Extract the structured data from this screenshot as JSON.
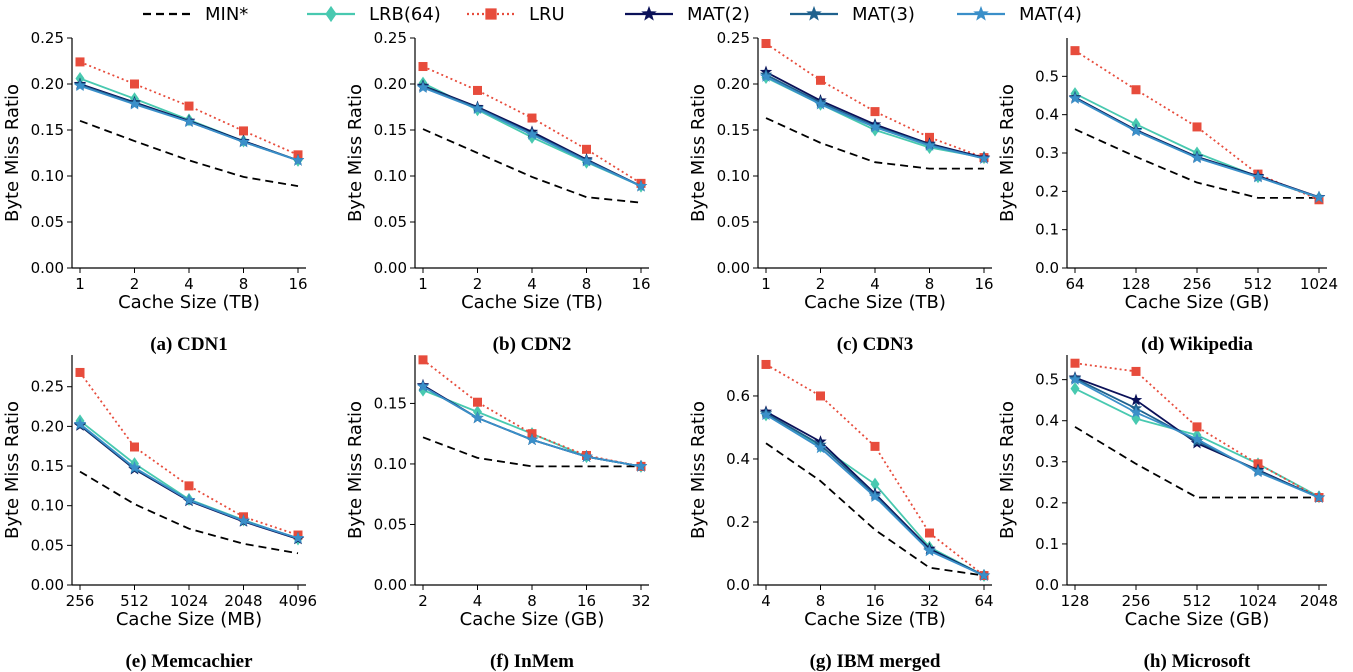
{
  "legend": [
    {
      "name": "MIN*",
      "color": "#000000",
      "dash": "8,5",
      "marker": "none"
    },
    {
      "name": "LRB(64)",
      "color": "#48c9b0",
      "dash": "",
      "marker": "diamond"
    },
    {
      "name": "LRU",
      "color": "#e74c3c",
      "dash": "2,3",
      "marker": "square"
    },
    {
      "name": "MAT(2)",
      "color": "#0b1158",
      "dash": "",
      "marker": "star"
    },
    {
      "name": "MAT(3)",
      "color": "#1f618d",
      "dash": "",
      "marker": "star"
    },
    {
      "name": "MAT(4)",
      "color": "#3a8fc9",
      "dash": "",
      "marker": "star"
    }
  ],
  "chart_data": [
    {
      "type": "line",
      "caption": "(a) CDN1",
      "x": [
        "1",
        "2",
        "4",
        "8",
        "16"
      ],
      "xlabel": "Cache Size (TB)",
      "ylabel": "Byte Miss Ratio",
      "ylim": [
        0,
        0.25
      ],
      "yticks": [
        "0.00",
        "0.05",
        "0.10",
        "0.15",
        "0.20",
        "0.25"
      ],
      "series": [
        {
          "name": "MIN*",
          "values": [
            0.16,
            0.138,
            0.117,
            0.099,
            0.089
          ]
        },
        {
          "name": "LRB(64)",
          "values": [
            0.206,
            0.184,
            0.161,
            0.138,
            0.117
          ]
        },
        {
          "name": "LRU",
          "values": [
            0.224,
            0.2,
            0.176,
            0.149,
            0.123
          ]
        },
        {
          "name": "MAT(2)",
          "values": [
            0.2,
            0.18,
            0.16,
            0.138,
            0.117
          ]
        },
        {
          "name": "MAT(3)",
          "values": [
            0.199,
            0.179,
            0.159,
            0.137,
            0.117
          ]
        },
        {
          "name": "MAT(4)",
          "values": [
            0.198,
            0.178,
            0.159,
            0.137,
            0.117
          ]
        }
      ]
    },
    {
      "type": "line",
      "caption": "(b) CDN2",
      "x": [
        "1",
        "2",
        "4",
        "8",
        "16"
      ],
      "xlabel": "Cache Size (TB)",
      "ylabel": "Byte Miss Ratio",
      "ylim": [
        0,
        0.25
      ],
      "yticks": [
        "0.00",
        "0.05",
        "0.10",
        "0.15",
        "0.20",
        "0.25"
      ],
      "series": [
        {
          "name": "MIN*",
          "values": [
            0.151,
            0.125,
            0.099,
            0.077,
            0.071
          ]
        },
        {
          "name": "LRB(64)",
          "values": [
            0.201,
            0.172,
            0.142,
            0.115,
            0.089
          ]
        },
        {
          "name": "LRU",
          "values": [
            0.219,
            0.193,
            0.163,
            0.129,
            0.092
          ]
        },
        {
          "name": "MAT(2)",
          "values": [
            0.198,
            0.175,
            0.148,
            0.118,
            0.089
          ]
        },
        {
          "name": "MAT(3)",
          "values": [
            0.197,
            0.174,
            0.146,
            0.117,
            0.089
          ]
        },
        {
          "name": "MAT(4)",
          "values": [
            0.196,
            0.173,
            0.145,
            0.116,
            0.089
          ]
        }
      ]
    },
    {
      "type": "line",
      "caption": "(c) CDN3",
      "x": [
        "1",
        "2",
        "4",
        "8",
        "16"
      ],
      "xlabel": "Cache Size (TB)",
      "ylabel": "Byte Miss Ratio",
      "ylim": [
        0,
        0.25
      ],
      "yticks": [
        "0.00",
        "0.05",
        "0.10",
        "0.15",
        "0.20",
        "0.25"
      ],
      "series": [
        {
          "name": "MIN*",
          "values": [
            0.163,
            0.136,
            0.115,
            0.108,
            0.108
          ]
        },
        {
          "name": "LRB(64)",
          "values": [
            0.207,
            0.178,
            0.15,
            0.131,
            0.12
          ]
        },
        {
          "name": "LRU",
          "values": [
            0.244,
            0.204,
            0.17,
            0.142,
            0.12
          ]
        },
        {
          "name": "MAT(2)",
          "values": [
            0.213,
            0.182,
            0.156,
            0.135,
            0.12
          ]
        },
        {
          "name": "MAT(3)",
          "values": [
            0.21,
            0.18,
            0.154,
            0.134,
            0.119
          ]
        },
        {
          "name": "MAT(4)",
          "values": [
            0.208,
            0.178,
            0.153,
            0.133,
            0.119
          ]
        }
      ]
    },
    {
      "type": "line",
      "caption": "(d) Wikipedia",
      "x": [
        "64",
        "128",
        "256",
        "512",
        "1024"
      ],
      "xlabel": "Cache Size (GB)",
      "ylabel": "Byte Miss Ratio",
      "ylim": [
        0,
        0.6
      ],
      "yticks": [
        "0.0",
        "0.1",
        "0.2",
        "0.3",
        "0.4",
        "0.5"
      ],
      "series": [
        {
          "name": "MIN*",
          "values": [
            0.362,
            0.29,
            0.223,
            0.183,
            0.183
          ]
        },
        {
          "name": "LRB(64)",
          "values": [
            0.455,
            0.375,
            0.3,
            0.238,
            0.183
          ]
        },
        {
          "name": "LRU",
          "values": [
            0.567,
            0.465,
            0.368,
            0.245,
            0.178
          ]
        },
        {
          "name": "MAT(2)",
          "values": [
            0.445,
            0.36,
            0.29,
            0.24,
            0.185
          ]
        },
        {
          "name": "MAT(3)",
          "values": [
            0.443,
            0.358,
            0.288,
            0.238,
            0.184
          ]
        },
        {
          "name": "MAT(4)",
          "values": [
            0.442,
            0.357,
            0.287,
            0.237,
            0.184
          ]
        }
      ]
    },
    {
      "type": "line",
      "caption": "(e) Memcachier",
      "x": [
        "256",
        "512",
        "1024",
        "2048",
        "4096"
      ],
      "xlabel": "Cache Size (MB)",
      "ylabel": "Byte Miss Ratio",
      "ylim": [
        0,
        0.29
      ],
      "yticks": [
        "0.00",
        "0.05",
        "0.10",
        "0.15",
        "0.20",
        "0.25"
      ],
      "series": [
        {
          "name": "MIN*",
          "values": [
            0.143,
            0.102,
            0.071,
            0.052,
            0.04
          ]
        },
        {
          "name": "LRB(64)",
          "values": [
            0.207,
            0.153,
            0.108,
            0.082,
            0.058
          ]
        },
        {
          "name": "LRU",
          "values": [
            0.268,
            0.174,
            0.125,
            0.086,
            0.063
          ]
        },
        {
          "name": "MAT(2)",
          "values": [
            0.201,
            0.146,
            0.106,
            0.08,
            0.058
          ]
        },
        {
          "name": "MAT(3)",
          "values": [
            0.202,
            0.147,
            0.107,
            0.081,
            0.059
          ]
        },
        {
          "name": "MAT(4)",
          "values": [
            0.203,
            0.148,
            0.107,
            0.081,
            0.059
          ]
        }
      ]
    },
    {
      "type": "line",
      "caption": "(f) InMem",
      "x": [
        "2",
        "4",
        "8",
        "16",
        "32"
      ],
      "xlabel": "Cache Size (GB)",
      "ylabel": "Byte Miss Ratio",
      "ylim": [
        0,
        0.19
      ],
      "yticks": [
        "0.00",
        "0.05",
        "0.10",
        "0.15"
      ],
      "series": [
        {
          "name": "MIN*",
          "values": [
            0.122,
            0.105,
            0.098,
            0.098,
            0.098
          ]
        },
        {
          "name": "LRB(64)",
          "values": [
            0.161,
            0.143,
            0.125,
            0.106,
            0.098
          ]
        },
        {
          "name": "LRU",
          "values": [
            0.186,
            0.151,
            0.125,
            0.107,
            0.098
          ]
        },
        {
          "name": "MAT(2)",
          "values": [
            0.165,
            0.138,
            0.12,
            0.106,
            0.098
          ]
        },
        {
          "name": "MAT(3)",
          "values": [
            0.164,
            0.138,
            0.12,
            0.106,
            0.098
          ]
        },
        {
          "name": "MAT(4)",
          "values": [
            0.164,
            0.138,
            0.12,
            0.106,
            0.098
          ]
        }
      ]
    },
    {
      "type": "line",
      "caption": "(g) IBM merged",
      "x": [
        "4",
        "8",
        "16",
        "32",
        "64"
      ],
      "xlabel": "Cache Size (TB)",
      "ylabel": "Byte Miss Ratio",
      "ylim": [
        0,
        0.73
      ],
      "yticks": [
        "0.0",
        "0.2",
        "0.4",
        "0.6"
      ],
      "series": [
        {
          "name": "MIN*",
          "values": [
            0.45,
            0.33,
            0.175,
            0.055,
            0.03
          ]
        },
        {
          "name": "LRB(64)",
          "values": [
            0.54,
            0.44,
            0.32,
            0.12,
            0.03
          ]
        },
        {
          "name": "LRU",
          "values": [
            0.7,
            0.6,
            0.44,
            0.165,
            0.03
          ]
        },
        {
          "name": "MAT(2)",
          "values": [
            0.55,
            0.455,
            0.29,
            0.115,
            0.03
          ]
        },
        {
          "name": "MAT(3)",
          "values": [
            0.545,
            0.445,
            0.285,
            0.11,
            0.03
          ]
        },
        {
          "name": "MAT(4)",
          "values": [
            0.54,
            0.435,
            0.28,
            0.108,
            0.03
          ]
        }
      ]
    },
    {
      "type": "line",
      "caption": "(h) Microsoft",
      "x": [
        "128",
        "256",
        "512",
        "1024",
        "2048"
      ],
      "xlabel": "Cache Size (GB)",
      "ylabel": "Byte Miss Ratio",
      "ylim": [
        0,
        0.56
      ],
      "yticks": [
        "0.0",
        "0.1",
        "0.2",
        "0.3",
        "0.4",
        "0.5"
      ],
      "series": [
        {
          "name": "MIN*",
          "values": [
            0.385,
            0.295,
            0.213,
            0.213,
            0.213
          ]
        },
        {
          "name": "LRB(64)",
          "values": [
            0.478,
            0.405,
            0.365,
            0.295,
            0.215
          ]
        },
        {
          "name": "LRU",
          "values": [
            0.54,
            0.52,
            0.385,
            0.295,
            0.213
          ]
        },
        {
          "name": "MAT(2)",
          "values": [
            0.505,
            0.45,
            0.345,
            0.28,
            0.213
          ]
        },
        {
          "name": "MAT(3)",
          "values": [
            0.503,
            0.43,
            0.35,
            0.278,
            0.213
          ]
        },
        {
          "name": "MAT(4)",
          "values": [
            0.5,
            0.42,
            0.355,
            0.275,
            0.213
          ]
        }
      ]
    }
  ]
}
